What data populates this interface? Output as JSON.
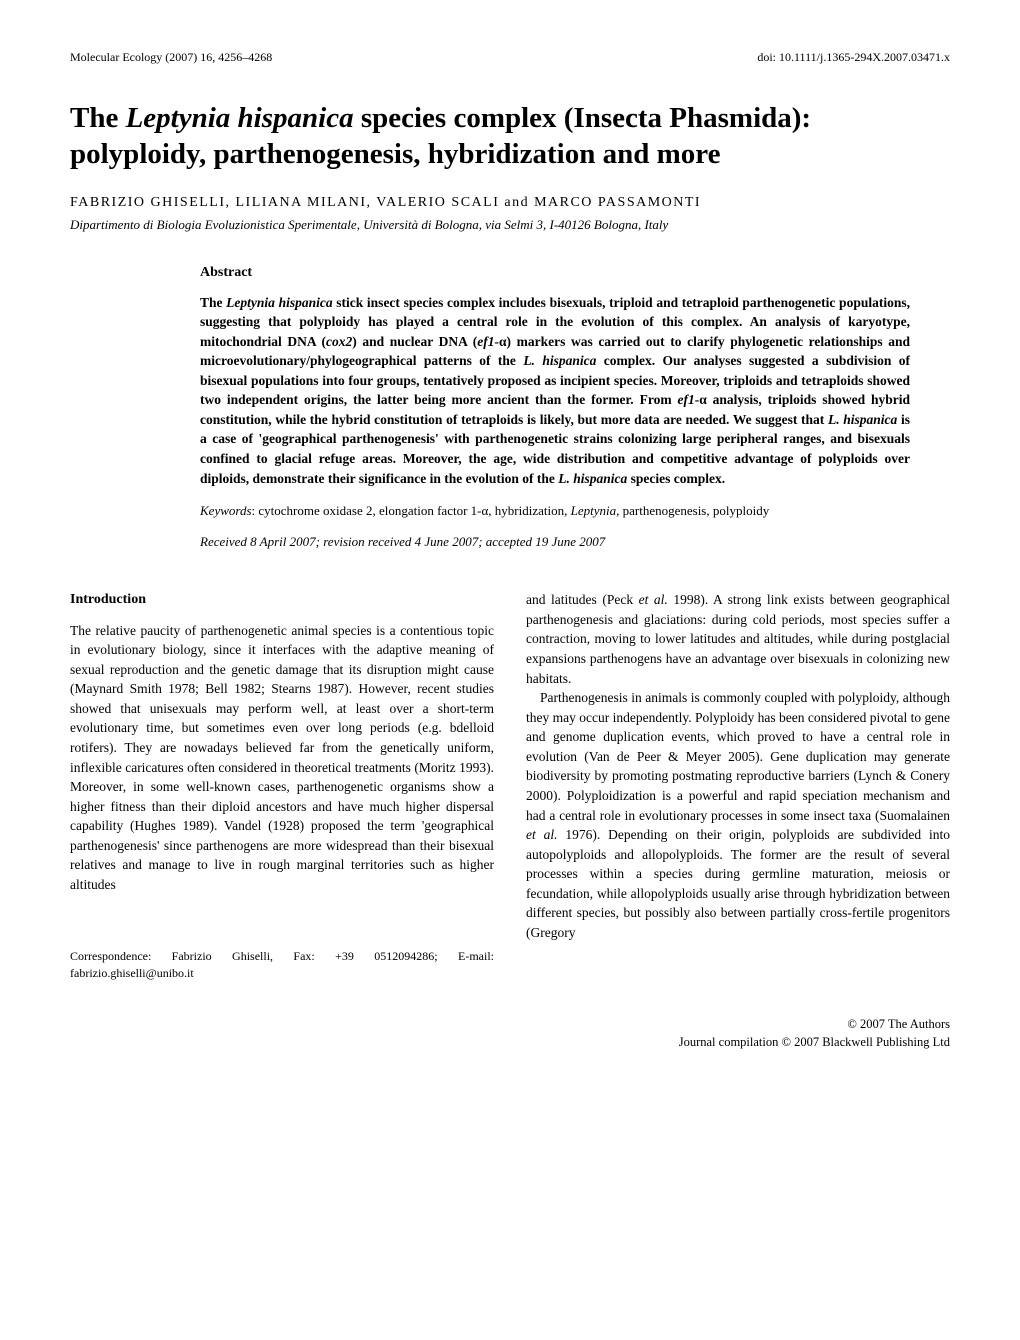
{
  "header": {
    "journal": "Molecular Ecology (2007) 16, 4256–4268",
    "doi": "doi: 10.1111/j.1365-294X.2007.03471.x"
  },
  "title_part1": "The ",
  "title_part2_italic": "Leptynia hispanica",
  "title_part3": " species complex (Insecta Phasmida): polyploidy, parthenogenesis, hybridization and more",
  "authors": "FABRIZIO GHISELLI, LILIANA MILANI, VALERIO SCALI and MARCO PASSAMONTI",
  "affiliation": "Dipartimento di Biologia Evoluzionistica Sperimentale, Università di Bologna, via Selmi 3, I-40126 Bologna, Italy",
  "abstract": {
    "heading": "Abstract",
    "text_pre": "The ",
    "text_ital1": "Leptynia hispanica",
    "text_mid1": " stick insect species complex includes bisexuals, triploid and tetraploid parthenogenetic populations, suggesting that polyploidy has played a central role in the evolution of this complex. An analysis of karyotype, mitochondrial DNA (",
    "text_ital2": "cox2",
    "text_mid2": ") and nuclear DNA (",
    "text_ital3": "ef1-",
    "text_mid3": "α) markers was carried out to clarify phylogenetic relationships and microevolutionary/phylogeographical patterns of the ",
    "text_ital4": "L. hispanica",
    "text_mid4": " complex. Our analyses suggested a subdivision of bisexual populations into four groups, tentatively proposed as incipient species. Moreover, triploids and tetraploids showed two independent origins, the latter being more ancient than the former. From ",
    "text_ital5": "ef1-",
    "text_mid5": "α analysis, triploids showed hybrid constitution, while the hybrid constitution of tetraploids is likely, but more data are needed. We suggest that ",
    "text_ital6": "L. hispanica",
    "text_mid6": " is a case of 'geographical parthenogenesis' with parthenogenetic strains colonizing large peripheral ranges, and bisexuals confined to glacial refuge areas. Moreover, the age, wide distribution and competitive advantage of polyploids over diploids, demonstrate their significance in the evolution of the ",
    "text_ital7": "L. hispanica",
    "text_end": " species complex.",
    "keywords_label": "Keywords",
    "keywords_text": ": cytochrome oxidase 2, elongation factor 1-α, hybridization, ",
    "keywords_ital": "Leptynia",
    "keywords_text2": ", parthenogenesis, polyploidy",
    "received": "Received 8 April 2007; revision received 4 June 2007; accepted 19 June 2007"
  },
  "intro": {
    "heading": "Introduction",
    "col1_p1": "The relative paucity of parthenogenetic animal species is a contentious topic in evolutionary biology, since it interfaces with the adaptive meaning of sexual reproduction and the genetic damage that its disruption might cause (Maynard Smith 1978; Bell 1982; Stearns 1987). However, recent studies showed that unisexuals may perform well, at least over a short-term evolutionary time, but sometimes even over long periods (e.g. bdelloid rotifers). They are nowadays believed far from the genetically uniform, inflexible caricatures often considered in theoretical treatments (Moritz 1993). Moreover, in some well-known cases, parthenogenetic organisms show a higher fitness than their diploid ancestors and have much higher dispersal capability (Hughes 1989). Vandel (1928) proposed the term 'geographical parthenogenesis' since parthenogens are more widespread than their bisexual relatives and manage to live in rough marginal territories such as higher altitudes",
    "col2_p1a": "and latitudes (Peck ",
    "col2_p1_ital": "et al.",
    "col2_p1b": " 1998). A strong link exists between geographical parthenogenesis and glaciations: during cold periods, most species suffer a contraction, moving to lower latitudes and altitudes, while during postglacial expansions parthenogens have an advantage over bisexuals in colonizing new habitats.",
    "col2_p2a": "Parthenogenesis in animals is commonly coupled with polyploidy, although they may occur independently. Polyploidy has been considered pivotal to gene and genome duplication events, which proved to have a central role in evolution (Van de Peer & Meyer 2005). Gene duplication may generate biodiversity by promoting postmating reproductive barriers (Lynch & Conery 2000). Polyploidization is a powerful and rapid speciation mechanism and had a central role in evolutionary processes in some insect taxa (Suomalainen ",
    "col2_p2_ital": "et al.",
    "col2_p2b": " 1976). Depending on their origin, polyploids are subdivided into autopolyploids and allopolyploids. The former are the result of several processes within a species during germline maturation, meiosis or fecundation, while allopolyploids usually arise through hybridization between different species, but possibly also between partially cross-fertile progenitors (Gregory"
  },
  "correspondence": "Correspondence: Fabrizio Ghiselli, Fax: +39 0512094286; E-mail: fabrizio.ghiselli@unibo.it",
  "footer": {
    "line1": "© 2007 The Authors",
    "line2": "Journal compilation © 2007 Blackwell Publishing Ltd"
  }
}
